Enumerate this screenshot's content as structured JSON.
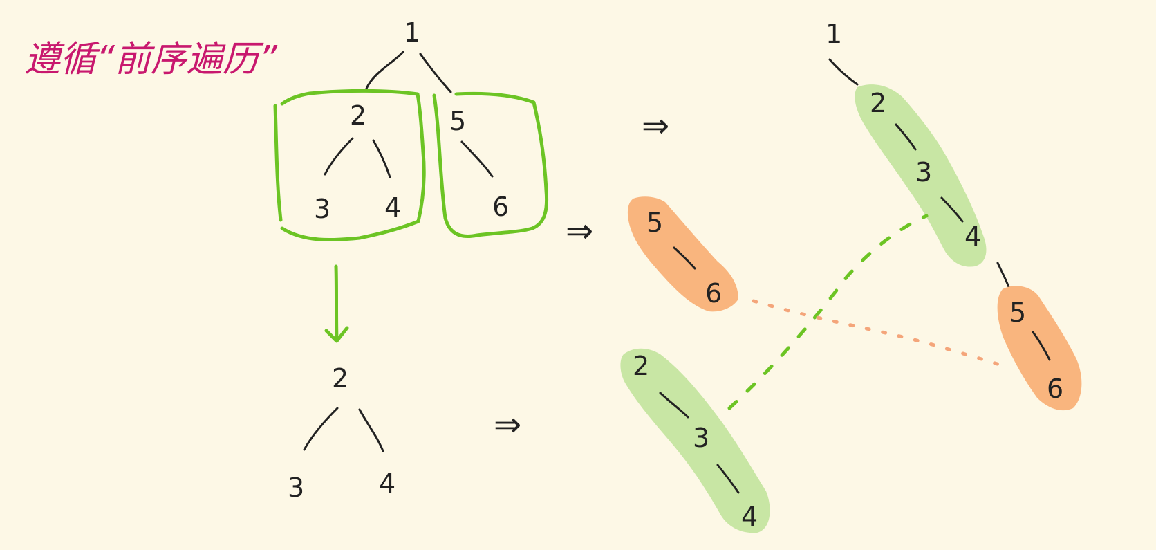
{
  "title": "遵循“前序遍历”",
  "colors": {
    "background": "#fdf8e6",
    "title": "#c8186e",
    "ink": "#222222",
    "green_outline": "#6cc424",
    "green_fill": "#c8e6a4",
    "orange_fill": "#f9b57e",
    "orange_dots": "#f4a57a"
  },
  "arrow_symbol": "⇒",
  "labels": {
    "root": "1",
    "n2": "2",
    "n3": "3",
    "n4": "4",
    "n5": "5",
    "n6": "6"
  }
}
